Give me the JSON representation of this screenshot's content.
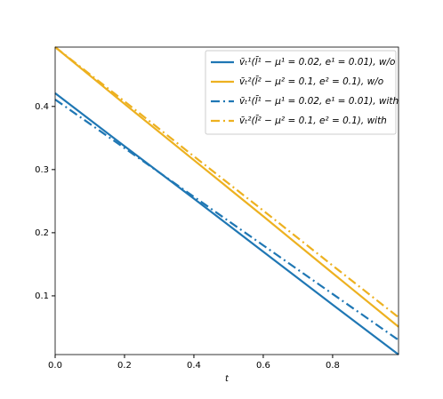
{
  "chart_data": {
    "type": "line",
    "xlabel": "t",
    "x": [
      0,
      0.2,
      0.4,
      0.6,
      0.8,
      0.99
    ],
    "xlim": [
      0,
      0.99
    ],
    "xticks": [
      {
        "value": 0,
        "label": "0.0"
      },
      0.2,
      0.4,
      0.6,
      0.8
    ],
    "ylim": [
      0.007,
      0.494
    ],
    "yticks": [
      0.1,
      0.2,
      0.3,
      0.4
    ],
    "legend": "upper right",
    "series": [
      {
        "name": "v̄ₜ¹(l̄¹ − μ¹ = 0.02, e¹ = 0.01), w/o",
        "color": "#1f77b4",
        "linestyle": "solid",
        "values": [
          0.421,
          0.337,
          0.254,
          0.17,
          0.086,
          0.007
        ]
      },
      {
        "name": "v̄ₜ²(l̄² − μ² = 0.1, e² = 0.1), w/o",
        "color": "#edb120",
        "linestyle": "solid",
        "values": [
          0.494,
          0.404,
          0.315,
          0.226,
          0.136,
          0.051
        ]
      },
      {
        "name": "v̄ₜ¹(l̄¹ − μ¹ = 0.02, e¹ = 0.01), with",
        "color": "#1f77b4",
        "linestyle": "dashdot",
        "values": [
          0.411,
          0.334,
          0.257,
          0.18,
          0.103,
          0.03
        ]
      },
      {
        "name": "v̄ₜ²(l̄² − μ² = 0.1, e² = 0.1), with",
        "color": "#edb120",
        "linestyle": "dashdot",
        "values": [
          0.494,
          0.408,
          0.321,
          0.235,
          0.148,
          0.066
        ]
      }
    ]
  }
}
